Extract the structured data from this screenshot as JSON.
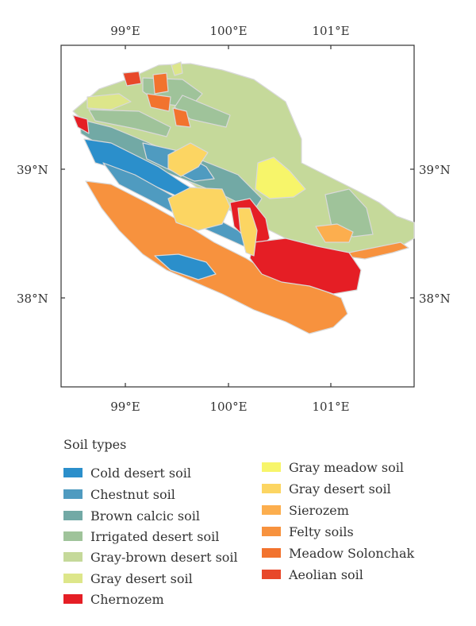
{
  "map": {
    "top_ticks": [
      "99°E",
      "100°E",
      "101°E"
    ],
    "bottom_ticks": [
      "99°E",
      "100°E",
      "101°E"
    ],
    "left_ticks": [
      "39°N",
      "38°N"
    ],
    "right_ticks": [
      "39°N",
      "38°N"
    ]
  },
  "legend": {
    "title": "Soil types",
    "items": [
      {
        "label": "Cold desert soil",
        "color": "#2b8fcb"
      },
      {
        "label": "Chestnut soil",
        "color": "#4f9bc0"
      },
      {
        "label": "Brown calcic soil",
        "color": "#72a9a5"
      },
      {
        "label": "Irrigated desert soil",
        "color": "#9fc39a"
      },
      {
        "label": "Gray-brown desert soil",
        "color": "#c5d99a"
      },
      {
        "label": "Gray desert soil",
        "color": "#dde68a"
      },
      {
        "label": "Chernozem",
        "color": "#e51e25"
      },
      {
        "label": "Gray meadow soil",
        "color": "#f7f56a"
      },
      {
        "label": "Gray desert soil",
        "color": "#fcd562"
      },
      {
        "label": "Sierozem",
        "color": "#fcae4e"
      },
      {
        "label": "Felty soils",
        "color": "#f7923e"
      },
      {
        "label": "Meadow Solonchak",
        "color": "#f2732e"
      },
      {
        "label": "Aeolian soil",
        "color": "#e8482a"
      }
    ]
  }
}
